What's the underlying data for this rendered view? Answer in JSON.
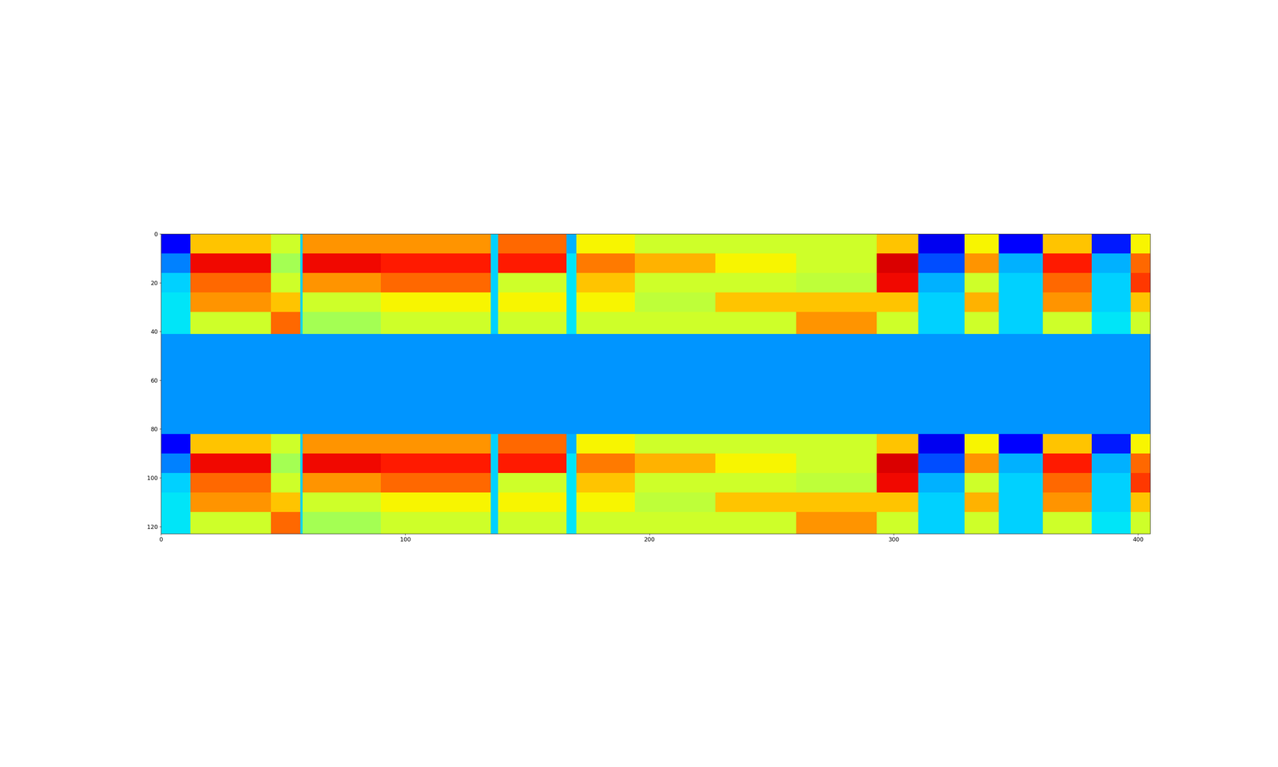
{
  "chart_data": {
    "type": "heatmap",
    "x_edges": [
      0,
      12,
      45,
      57,
      58,
      90,
      135,
      138,
      166,
      170,
      194,
      227,
      260,
      293,
      310,
      329,
      343,
      361,
      381,
      397,
      405
    ],
    "y_edges": [
      0,
      8,
      16,
      24,
      32,
      41,
      82,
      90,
      98,
      106,
      114,
      123
    ],
    "cells": [
      [
        0.12,
        0.7,
        0.6,
        0.33,
        0.75,
        0.75,
        0.33,
        0.8,
        0.3,
        0.65,
        0.6,
        0.6,
        0.6,
        0.7,
        0.1,
        0.65,
        0.12,
        0.7,
        0.15,
        0.65
      ],
      [
        0.25,
        0.9,
        0.55,
        0.33,
        0.9,
        0.88,
        0.33,
        0.88,
        0.35,
        0.78,
        0.72,
        0.65,
        0.6,
        0.92,
        0.2,
        0.75,
        0.3,
        0.88,
        0.3,
        0.8
      ],
      [
        0.33,
        0.8,
        0.6,
        0.33,
        0.75,
        0.8,
        0.33,
        0.6,
        0.35,
        0.7,
        0.6,
        0.6,
        0.58,
        0.9,
        0.3,
        0.6,
        0.33,
        0.8,
        0.33,
        0.85
      ],
      [
        0.35,
        0.75,
        0.7,
        0.33,
        0.6,
        0.65,
        0.33,
        0.65,
        0.35,
        0.65,
        0.58,
        0.7,
        0.7,
        0.7,
        0.33,
        0.72,
        0.33,
        0.75,
        0.33,
        0.7
      ],
      [
        0.35,
        0.6,
        0.8,
        0.33,
        0.55,
        0.6,
        0.33,
        0.6,
        0.35,
        0.6,
        0.6,
        0.6,
        0.75,
        0.6,
        0.33,
        0.6,
        0.33,
        0.6,
        0.35,
        0.6
      ],
      [
        0.27,
        0.27,
        0.27,
        0.27,
        0.27,
        0.27,
        0.27,
        0.27,
        0.27,
        0.27,
        0.27,
        0.27,
        0.27,
        0.27,
        0.27,
        0.27,
        0.27,
        0.27,
        0.27,
        0.27
      ],
      [
        0.12,
        0.7,
        0.6,
        0.33,
        0.75,
        0.75,
        0.33,
        0.8,
        0.3,
        0.65,
        0.6,
        0.6,
        0.6,
        0.7,
        0.1,
        0.65,
        0.12,
        0.7,
        0.15,
        0.65
      ],
      [
        0.25,
        0.9,
        0.55,
        0.33,
        0.9,
        0.88,
        0.33,
        0.88,
        0.35,
        0.78,
        0.72,
        0.65,
        0.6,
        0.92,
        0.2,
        0.75,
        0.3,
        0.88,
        0.3,
        0.8
      ],
      [
        0.33,
        0.8,
        0.6,
        0.33,
        0.75,
        0.8,
        0.33,
        0.6,
        0.35,
        0.7,
        0.6,
        0.6,
        0.58,
        0.9,
        0.3,
        0.6,
        0.33,
        0.8,
        0.33,
        0.85
      ],
      [
        0.35,
        0.75,
        0.7,
        0.33,
        0.6,
        0.65,
        0.33,
        0.65,
        0.35,
        0.65,
        0.58,
        0.7,
        0.7,
        0.7,
        0.33,
        0.72,
        0.33,
        0.75,
        0.33,
        0.7
      ],
      [
        0.35,
        0.6,
        0.8,
        0.33,
        0.55,
        0.6,
        0.33,
        0.6,
        0.35,
        0.6,
        0.6,
        0.6,
        0.75,
        0.6,
        0.33,
        0.6,
        0.33,
        0.6,
        0.35,
        0.6
      ]
    ],
    "color_range": [
      0,
      1
    ],
    "xlim": [
      0,
      405
    ],
    "xticks": [
      0,
      100,
      200,
      300,
      400
    ],
    "ylim": [
      123,
      0
    ],
    "yticks": [
      0,
      20,
      40,
      60,
      80,
      100,
      120
    ]
  }
}
